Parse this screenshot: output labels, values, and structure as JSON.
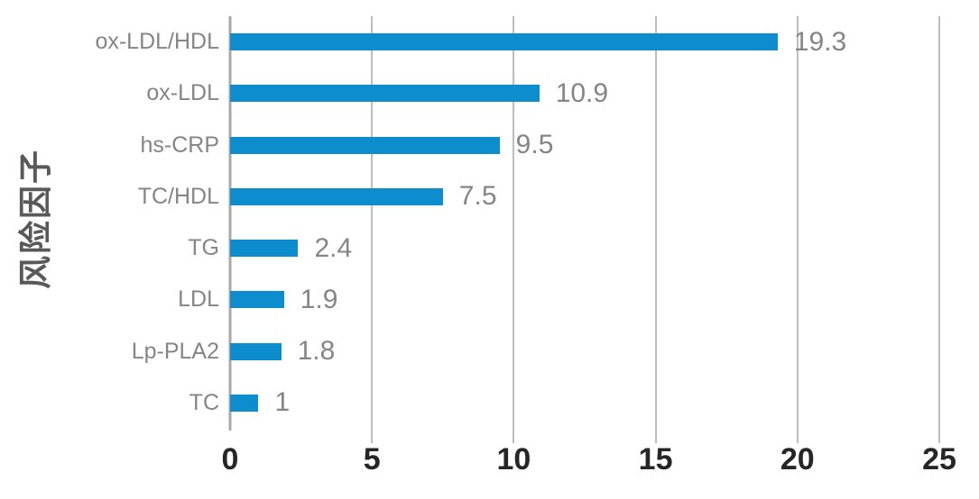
{
  "chart_data": {
    "type": "bar",
    "orientation": "horizontal",
    "title": "",
    "xlabel": "",
    "ylabel": "风险因子",
    "categories": [
      "ox-LDL/HDL",
      "ox-LDL",
      "hs-CRP",
      "TC/HDL",
      "TG",
      "LDL",
      "Lp-PLA2",
      "TC"
    ],
    "values": [
      19.3,
      10.9,
      9.5,
      7.5,
      2.4,
      1.9,
      1.8,
      1
    ],
    "value_labels": [
      "19.3",
      "10.9",
      "9.5",
      "7.5",
      "2.4",
      "1.9",
      "1.8",
      "1"
    ],
    "xlim": [
      0,
      25
    ],
    "xticks": [
      0,
      5,
      10,
      15,
      20,
      25
    ],
    "grid": "vertical-gridlines-on",
    "legend": "none",
    "data_labels_shown": true,
    "colors": {
      "bar": "#0d8cce",
      "gridline": "#bdbdbd",
      "axis_line": "#a8a8a8",
      "category_label": "#858585",
      "value_label": "#858585",
      "tick_label": "#262626",
      "axis_title": "#595959",
      "background": "#ffffff"
    }
  }
}
